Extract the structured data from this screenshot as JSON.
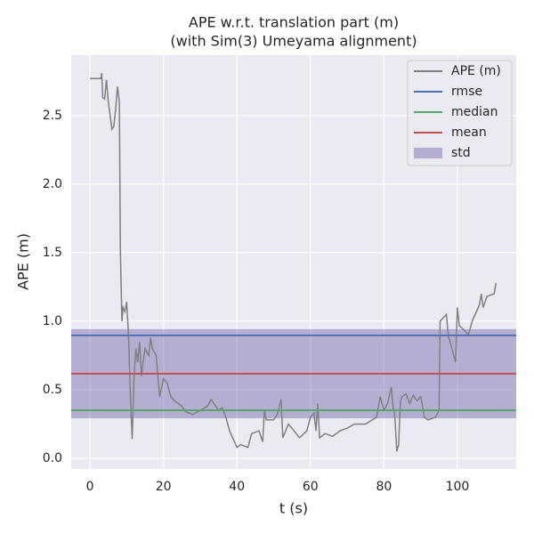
{
  "chart_data": {
    "type": "line",
    "title": "APE w.r.t. translation part (m)",
    "subtitle": "(with Sim(3) Umeyama alignment)",
    "xlabel": "t (s)",
    "ylabel": "APE (m)",
    "xlim": [
      -5.1,
      116
    ],
    "ylim": [
      -0.078,
      2.94
    ],
    "xticks": [
      0,
      20,
      40,
      60,
      80,
      100
    ],
    "yticks": [
      {
        "value": 0,
        "label": "0.0"
      },
      0.5,
      {
        "value": 1,
        "label": "1.0"
      },
      1.5,
      {
        "value": 2,
        "label": "2.0"
      },
      2.5
    ],
    "grid": true,
    "legend": "upper right",
    "background": "#eaeaf2",
    "series": [
      {
        "name": "APE (m)",
        "color": "#808080",
        "x": [
          0,
          3,
          3.2,
          3.5,
          4,
          4.5,
          5,
          6,
          6.5,
          7,
          7.5,
          8,
          8.3,
          8.7,
          9,
          9.5,
          10,
          10.5,
          11,
          11.5,
          12,
          12.5,
          13,
          13.5,
          14,
          15,
          16,
          16.5,
          17,
          18,
          18.5,
          19,
          20,
          21,
          22,
          23,
          24,
          25,
          26,
          28,
          30,
          32,
          33,
          35,
          36,
          37,
          38,
          40,
          41,
          43,
          44,
          46,
          47,
          47.5,
          48,
          50,
          51,
          52,
          52.5,
          54,
          55,
          57,
          59,
          60,
          61,
          61.5,
          62,
          62.5,
          64,
          66,
          68,
          70,
          72,
          75,
          78,
          79,
          80,
          81,
          82,
          82.5,
          83,
          83.5,
          84,
          84.5,
          85,
          86,
          87,
          88,
          89,
          90,
          90.5,
          91,
          92,
          94,
          95,
          95.3,
          96,
          97,
          97.5,
          98,
          99,
          99.5,
          100,
          100.5,
          102,
          103,
          104,
          106,
          106.5,
          107,
          108,
          110,
          110.5
        ],
        "values": [
          2.77,
          2.77,
          2.81,
          2.63,
          2.62,
          2.76,
          2.6,
          2.4,
          2.42,
          2.55,
          2.71,
          2.6,
          1.5,
          1.0,
          1.1,
          1.07,
          1.14,
          0.9,
          0.45,
          0.14,
          0.6,
          0.8,
          0.7,
          0.85,
          0.6,
          0.8,
          0.75,
          0.88,
          0.8,
          0.75,
          0.6,
          0.45,
          0.58,
          0.55,
          0.45,
          0.42,
          0.4,
          0.38,
          0.34,
          0.32,
          0.35,
          0.38,
          0.43,
          0.35,
          0.37,
          0.3,
          0.2,
          0.08,
          0.1,
          0.08,
          0.18,
          0.2,
          0.12,
          0.35,
          0.28,
          0.28,
          0.32,
          0.43,
          0.15,
          0.25,
          0.22,
          0.15,
          0.2,
          0.3,
          0.33,
          0.2,
          0.4,
          0.15,
          0.18,
          0.16,
          0.2,
          0.22,
          0.25,
          0.25,
          0.3,
          0.45,
          0.35,
          0.4,
          0.52,
          0.38,
          0.3,
          0.05,
          0.1,
          0.42,
          0.45,
          0.47,
          0.4,
          0.46,
          0.42,
          0.45,
          0.38,
          0.3,
          0.28,
          0.3,
          0.35,
          1.0,
          1.02,
          1.05,
          0.9,
          0.85,
          0.75,
          0.7,
          1.1,
          0.97,
          0.93,
          0.9,
          1.0,
          1.12,
          1.2,
          1.1,
          1.18,
          1.2,
          1.28
        ]
      }
    ],
    "stats": [
      {
        "name": "rmse",
        "color": "#4c72b0",
        "value": 0.896
      },
      {
        "name": "median",
        "color": "#55a868",
        "value": 0.35
      },
      {
        "name": "mean",
        "color": "#c44e52",
        "value": 0.617
      }
    ],
    "std": {
      "name": "std",
      "color": "#8172b2",
      "value": 0.325
    }
  }
}
